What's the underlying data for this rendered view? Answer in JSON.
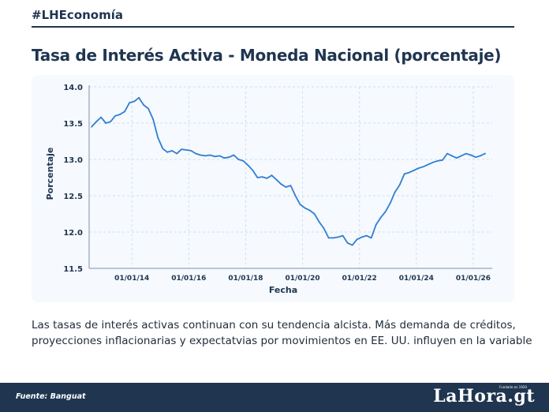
{
  "header": {
    "hashtag": "#LHEconomía"
  },
  "footer": {
    "source": "Fuente: Banguat",
    "logo": "LaHora.gt",
    "logo_tagline": "Fundado en 1920"
  },
  "caption": [
    "Las tasas de interés activas continuan con su tendencia alcista. Más demanda de créditos,",
    "proyecciones inflacionarias y expectatvias por movimientos en EE. UU. influyen en la variable"
  ],
  "colors": {
    "navy": "#1f3550",
    "line": "#2f7fd6",
    "grid": "#cfe0f2"
  },
  "chart_data": {
    "type": "line",
    "title": "Tasa de Interés Activa - Moneda Nacional (porcentaje)",
    "xlabel": "Fecha",
    "ylabel": "Porcentaje",
    "xlim": [
      "2012-07-01",
      "2026-09-01"
    ],
    "ylim": [
      11.5,
      14.0
    ],
    "y_ticks": [
      11.5,
      12.0,
      12.5,
      13.0,
      13.5,
      14.0
    ],
    "x_ticks": [
      "2014-01-01",
      "2016-01-01",
      "2018-01-01",
      "2020-01-01",
      "2022-01-01",
      "2024-01-01",
      "2026-01-01"
    ],
    "x_tick_labels": [
      "01/01/14",
      "01/01/16",
      "01/01/18",
      "01/01/20",
      "01/01/22",
      "01/01/24",
      "01/01/26"
    ],
    "grid": true,
    "series": [
      {
        "x": [
          "2012-08-01",
          "2012-10-01",
          "2012-12-01",
          "2013-02-01",
          "2013-04-01",
          "2013-06-01",
          "2013-08-01",
          "2013-10-01",
          "2013-12-01",
          "2014-02-01",
          "2014-04-01",
          "2014-06-01",
          "2014-08-01",
          "2014-10-01",
          "2014-12-01",
          "2015-02-01",
          "2015-04-01",
          "2015-06-01",
          "2015-08-01",
          "2015-10-01",
          "2015-12-01",
          "2016-02-01",
          "2016-04-01",
          "2016-06-01",
          "2016-08-01",
          "2016-10-01",
          "2016-12-01",
          "2017-02-01",
          "2017-04-01",
          "2017-06-01",
          "2017-08-01",
          "2017-10-01",
          "2017-12-01",
          "2018-02-01",
          "2018-04-01",
          "2018-06-01",
          "2018-08-01",
          "2018-10-01",
          "2018-12-01",
          "2019-02-01",
          "2019-04-01",
          "2019-06-01",
          "2019-08-01",
          "2019-10-01",
          "2019-12-01",
          "2020-02-01",
          "2020-04-01",
          "2020-06-01",
          "2020-08-01",
          "2020-10-01",
          "2020-12-01",
          "2021-02-01",
          "2021-04-01",
          "2021-06-01",
          "2021-08-01",
          "2021-10-01",
          "2021-12-01",
          "2022-02-01",
          "2022-04-01",
          "2022-06-01",
          "2022-08-01",
          "2022-10-01",
          "2022-12-01",
          "2023-02-01",
          "2023-04-01",
          "2023-06-01",
          "2023-08-01",
          "2023-10-01",
          "2023-12-01",
          "2024-02-01",
          "2024-04-01",
          "2024-06-01",
          "2024-08-01",
          "2024-10-01",
          "2024-12-01",
          "2025-02-01",
          "2025-04-01",
          "2025-06-01",
          "2025-08-01",
          "2025-10-01",
          "2025-12-01",
          "2026-02-01",
          "2026-04-01",
          "2026-06-01"
        ],
        "values": [
          13.45,
          13.52,
          13.58,
          13.5,
          13.52,
          13.6,
          13.62,
          13.66,
          13.78,
          13.8,
          13.85,
          13.75,
          13.7,
          13.55,
          13.3,
          13.15,
          13.1,
          13.12,
          13.08,
          13.14,
          13.13,
          13.12,
          13.08,
          13.06,
          13.05,
          13.06,
          13.04,
          13.05,
          13.02,
          13.03,
          13.06,
          13.0,
          12.98,
          12.92,
          12.85,
          12.75,
          12.76,
          12.74,
          12.78,
          12.72,
          12.66,
          12.62,
          12.64,
          12.5,
          12.38,
          12.33,
          12.3,
          12.25,
          12.14,
          12.05,
          11.92,
          11.92,
          11.93,
          11.95,
          11.85,
          11.82,
          11.9,
          11.93,
          11.95,
          11.92,
          12.1,
          12.2,
          12.28,
          12.4,
          12.55,
          12.65,
          12.8,
          12.82,
          12.85,
          12.88,
          12.9,
          12.93,
          12.96,
          12.98,
          12.99,
          13.08,
          13.05,
          13.02,
          13.05,
          13.08,
          13.06,
          13.03,
          13.05,
          13.08
        ]
      }
    ]
  }
}
